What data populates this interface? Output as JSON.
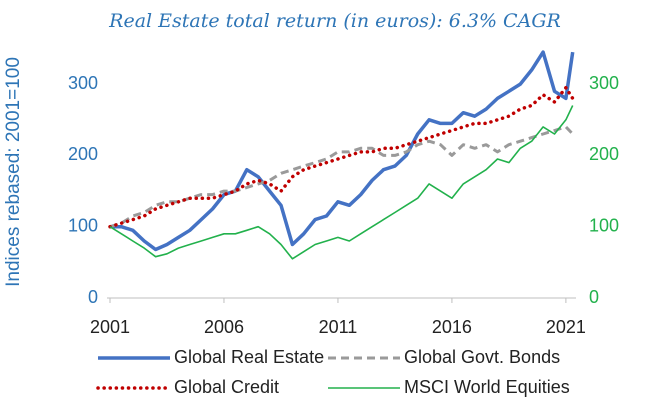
{
  "chart_data": {
    "type": "line",
    "title": "Real Estate total return (in euros): 6.3% CAGR",
    "y_label": "Indices rebased: 2001=100",
    "x": [
      2001,
      2001.5,
      2002,
      2002.5,
      2003,
      2003.5,
      2004,
      2004.5,
      2005,
      2005.5,
      2006,
      2006.5,
      2007,
      2007.5,
      2008,
      2008.5,
      2009,
      2009.5,
      2010,
      2010.5,
      2011,
      2011.5,
      2012,
      2012.5,
      2013,
      2013.5,
      2014,
      2014.5,
      2015,
      2015.5,
      2016,
      2016.5,
      2017,
      2017.5,
      2018,
      2018.5,
      2019,
      2019.5,
      2020,
      2020.5,
      2021,
      2021.3
    ],
    "xlim": [
      2001,
      2021.4
    ],
    "xticks": [
      2001,
      2006,
      2011,
      2016,
      2021
    ],
    "ylim": [
      0,
      350
    ],
    "yticks": [
      0,
      100,
      200,
      300
    ],
    "y2lim": [
      0,
      350
    ],
    "y2ticks": [
      0,
      100,
      200,
      300
    ],
    "grid": false,
    "series": [
      {
        "name": "Global Real Estate",
        "color": "#4472c4",
        "style": "solid",
        "values": [
          100,
          100,
          95,
          80,
          68,
          75,
          85,
          95,
          110,
          125,
          145,
          150,
          180,
          170,
          150,
          130,
          75,
          90,
          110,
          115,
          135,
          130,
          145,
          165,
          180,
          185,
          200,
          230,
          250,
          245,
          245,
          260,
          255,
          265,
          280,
          290,
          300,
          320,
          345,
          290,
          280,
          345
        ]
      },
      {
        "name": "Global Govt. Bonds",
        "color": "#9a9a9a",
        "style": "dashed",
        "values": [
          100,
          105,
          115,
          120,
          130,
          135,
          135,
          140,
          145,
          145,
          150,
          150,
          155,
          160,
          165,
          175,
          180,
          185,
          190,
          195,
          205,
          205,
          210,
          210,
          200,
          200,
          205,
          215,
          220,
          215,
          200,
          215,
          210,
          215,
          205,
          215,
          220,
          225,
          230,
          235,
          240,
          230
        ]
      },
      {
        "name": "Global Credit",
        "color": "#c00000",
        "style": "dotted",
        "values": [
          100,
          105,
          110,
          115,
          125,
          130,
          135,
          140,
          140,
          140,
          145,
          150,
          160,
          165,
          160,
          150,
          170,
          180,
          185,
          190,
          195,
          200,
          205,
          205,
          210,
          210,
          215,
          220,
          225,
          230,
          235,
          240,
          245,
          245,
          250,
          255,
          265,
          270,
          285,
          275,
          295,
          280
        ]
      },
      {
        "name": "MSCI World Equities",
        "color": "#22b14c",
        "style": "solid-thin",
        "axis": "y2",
        "values": [
          100,
          90,
          80,
          70,
          58,
          62,
          70,
          75,
          80,
          85,
          90,
          90,
          95,
          100,
          90,
          75,
          55,
          65,
          75,
          80,
          85,
          80,
          90,
          100,
          110,
          120,
          130,
          140,
          160,
          150,
          140,
          160,
          170,
          180,
          195,
          190,
          210,
          220,
          240,
          230,
          250,
          270
        ]
      }
    ]
  }
}
